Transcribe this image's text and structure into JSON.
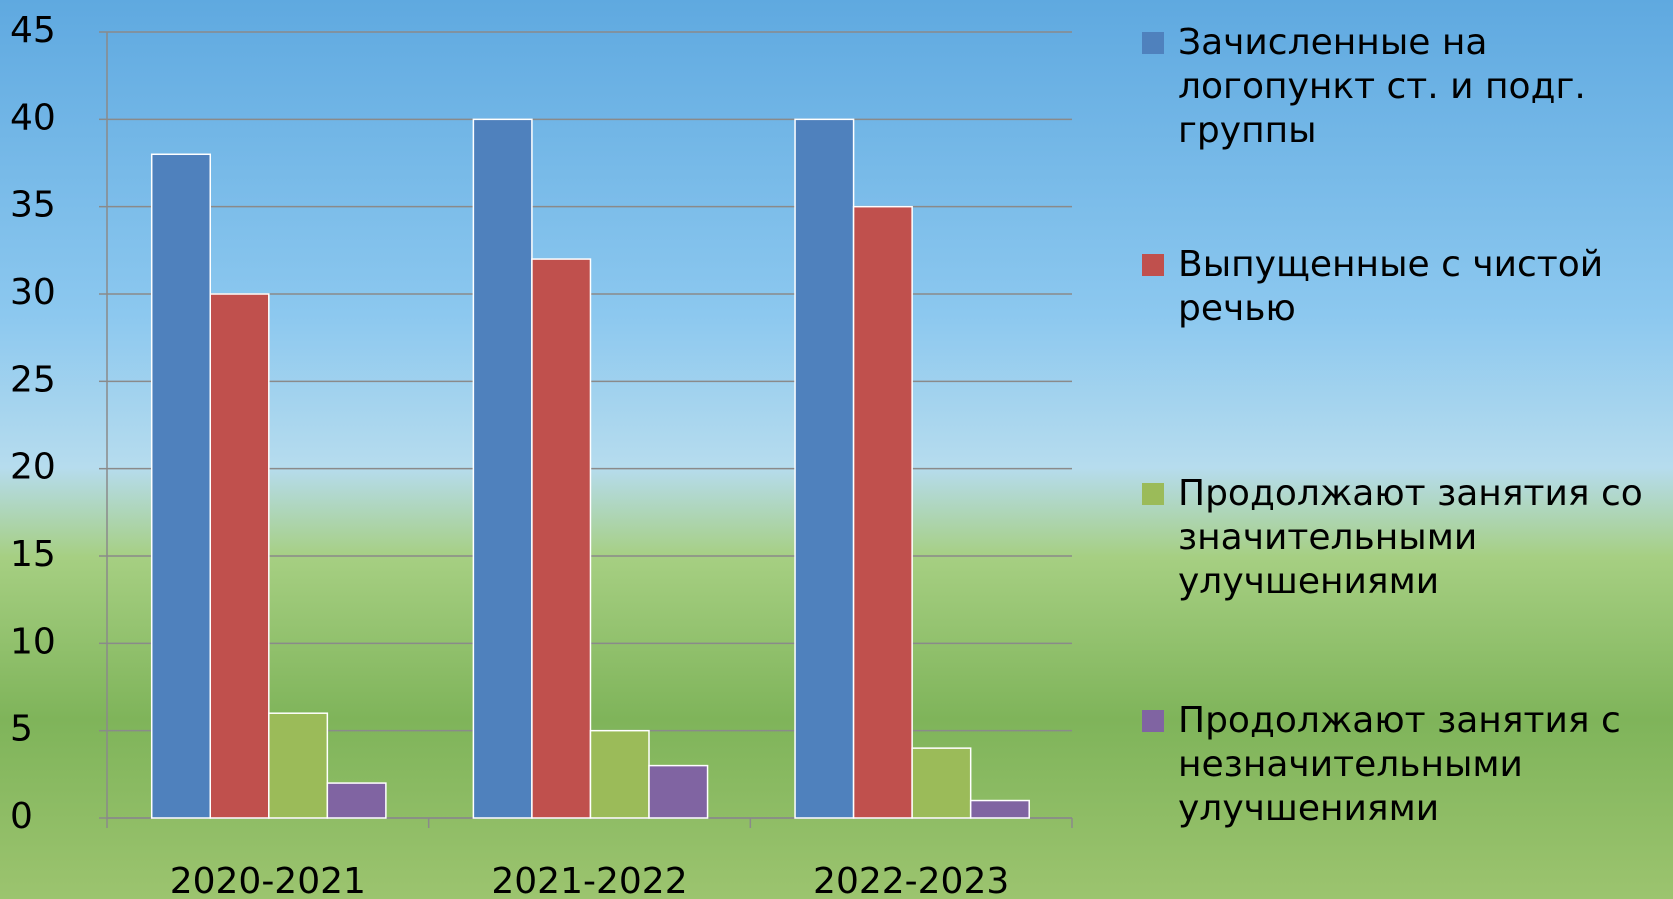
{
  "chart_data": {
    "type": "bar",
    "categories": [
      "2020-2021",
      "2021-2022",
      "2022-2023"
    ],
    "series": [
      {
        "name": "Зачисленные на логопункт ст. и подг. группы",
        "color": "#4f81bd",
        "values": [
          38,
          40,
          40
        ]
      },
      {
        "name": "Выпущенные с чистой речью",
        "color": "#c0504d",
        "values": [
          30,
          32,
          35
        ]
      },
      {
        "name": "Продолжают занятия со значительными улучшениями",
        "color": "#9bbb59",
        "values": [
          6,
          5,
          4
        ]
      },
      {
        "name": "Продолжают занятия с незначительными улучшениями",
        "color": "#8064a2",
        "values": [
          2,
          3,
          1
        ]
      }
    ],
    "ylim": [
      0,
      45
    ],
    "yticks": [
      0,
      5,
      10,
      15,
      20,
      25,
      30,
      35,
      40,
      45
    ],
    "grid": true,
    "legend": "right"
  }
}
